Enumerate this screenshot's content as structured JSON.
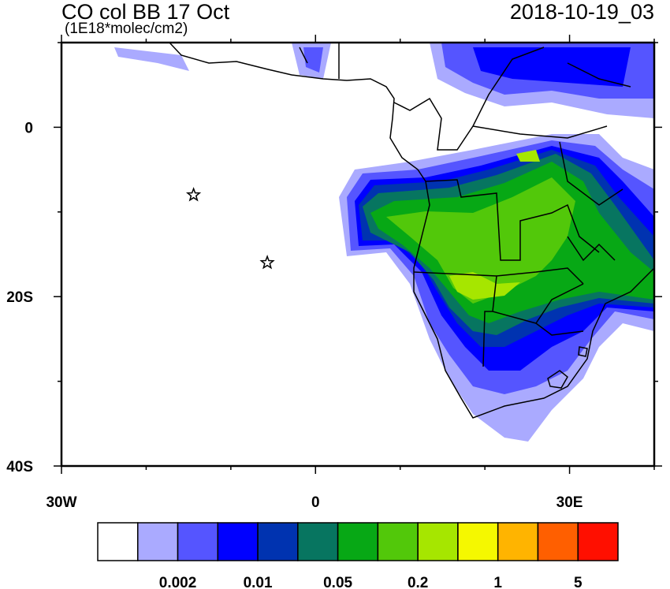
{
  "title": "CO col BB 17 Oct",
  "units": "(1E18*molec/cm2)",
  "timestamp": "2018-10-19_03",
  "map": {
    "lon_range": [
      -30,
      40
    ],
    "lat_range": [
      -40,
      10
    ],
    "lon_ticks": [
      {
        "value": -30,
        "label": "30W"
      },
      {
        "value": 0,
        "label": "0"
      },
      {
        "value": 30,
        "label": "30E"
      }
    ],
    "lat_ticks": [
      {
        "value": 0,
        "label": "0"
      },
      {
        "value": -20,
        "label": "20S"
      },
      {
        "value": -40,
        "label": "40S"
      }
    ],
    "markers": [
      {
        "symbol": "star",
        "lon": -14.4,
        "lat": -8
      },
      {
        "symbol": "star",
        "lon": -5.7,
        "lat": -16
      }
    ]
  },
  "colorbar": {
    "colors": [
      "#ffffff",
      "#aaaaff",
      "#5555ff",
      "#0000ff",
      "#0033b0",
      "#077560",
      "#07a815",
      "#52c80a",
      "#a6e600",
      "#f5f800",
      "#ffb400",
      "#ff5f00",
      "#ff0f00"
    ],
    "labels": [
      {
        "boundary": 2,
        "text": "0.002"
      },
      {
        "boundary": 4,
        "text": "0.01"
      },
      {
        "boundary": 6,
        "text": "0.05"
      },
      {
        "boundary": 8,
        "text": "0.2"
      },
      {
        "boundary": 10,
        "text": "1"
      },
      {
        "boundary": 12,
        "text": "5"
      }
    ]
  }
}
